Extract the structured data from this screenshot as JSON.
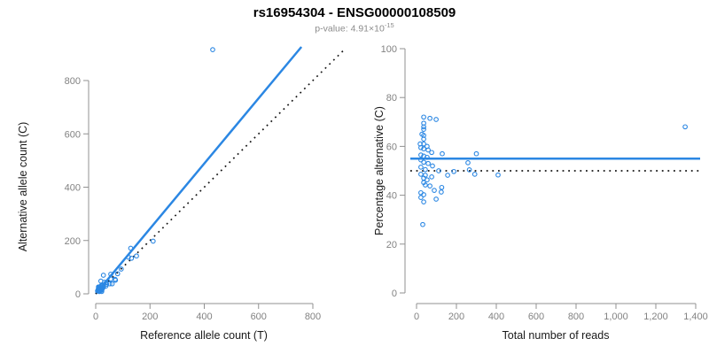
{
  "header": {
    "title": "rs16954304 - ENSG00000108509",
    "subtitle_label": "p-value: ",
    "p_value_mantissa": "4.91",
    "multiply_sign": "×",
    "p_value_base": "10",
    "p_value_exponent": "-15"
  },
  "colors": {
    "blue": "#2b87e3",
    "black": "#151515",
    "axis": "#919191",
    "tick_label": "#828282",
    "axis_title": "#1a1a1a",
    "title": "#000000",
    "subtitle": "#8c8c8c"
  },
  "chart_data": [
    {
      "type": "scatter",
      "name": "allele-counts-plot",
      "xlabel": "Reference allele count (T)",
      "ylabel": "Alternative allele count (C)",
      "xlim": [
        0,
        800
      ],
      "ylim": [
        0,
        800
      ],
      "xticks": [
        "0",
        "200",
        "400",
        "600",
        "800"
      ],
      "yticks": [
        "0",
        "200",
        "400",
        "600",
        "800"
      ],
      "grid": false,
      "lines": [
        {
          "name": "regression-line",
          "style": "solid",
          "color_key": "blue",
          "slope": 1.222,
          "intercept": 0
        },
        {
          "name": "identity-line",
          "style": "dotted",
          "color_key": "black",
          "slope": 1,
          "intercept": 0
        }
      ],
      "points_note": "points derived from reads plot: x = total*(100-pct)/100, y = total*pct/100"
    },
    {
      "type": "scatter",
      "name": "percentage-vs-reads-plot",
      "xlabel": "Total number of reads",
      "ylabel": "Percentage alternative (C)",
      "xlim": [
        0,
        1400
      ],
      "ylim": [
        0,
        100
      ],
      "xticks": [
        "0",
        "200",
        "400",
        "600",
        "800",
        "1,000",
        "1,200",
        "1,400"
      ],
      "yticks": [
        "0",
        "20",
        "40",
        "60",
        "80",
        "100"
      ],
      "grid": false,
      "hlines": [
        {
          "name": "mean-percentage-line",
          "style": "solid",
          "color_key": "blue",
          "y": 55
        },
        {
          "name": "fifty-percent-line",
          "style": "dotted",
          "color_key": "black",
          "y": 50
        }
      ],
      "points": [
        [
          36,
          72
        ],
        [
          67,
          71.5
        ],
        [
          98,
          71
        ],
        [
          36,
          69.5
        ],
        [
          36,
          68
        ],
        [
          36,
          67
        ],
        [
          27,
          65
        ],
        [
          36,
          64.5
        ],
        [
          36,
          63
        ],
        [
          18,
          61
        ],
        [
          36,
          61
        ],
        [
          53,
          60
        ],
        [
          22,
          59.5
        ],
        [
          36,
          59
        ],
        [
          58,
          58.5
        ],
        [
          76,
          57.5
        ],
        [
          129,
          57
        ],
        [
          300,
          57
        ],
        [
          22,
          56.5
        ],
        [
          36,
          56
        ],
        [
          53,
          55.5
        ],
        [
          22,
          54.5
        ],
        [
          36,
          53.5
        ],
        [
          258,
          53.3
        ],
        [
          58,
          53
        ],
        [
          80,
          52
        ],
        [
          22,
          51.5
        ],
        [
          44,
          50.5
        ],
        [
          111,
          50
        ],
        [
          187,
          49.7
        ],
        [
          265,
          50.4
        ],
        [
          22,
          48.6
        ],
        [
          44,
          48.2
        ],
        [
          156,
          48.2
        ],
        [
          76,
          47.5
        ],
        [
          292,
          48.6
        ],
        [
          409,
          48.3
        ],
        [
          36,
          47
        ],
        [
          53,
          46.3
        ],
        [
          36,
          45.2
        ],
        [
          44,
          44.2
        ],
        [
          67,
          43.8
        ],
        [
          126,
          43.2
        ],
        [
          89,
          42
        ],
        [
          124,
          41.3
        ],
        [
          22,
          41
        ],
        [
          36,
          40.2
        ],
        [
          22,
          39.1
        ],
        [
          98,
          38.4
        ],
        [
          36,
          37.3
        ],
        [
          31,
          28
        ],
        [
          1347,
          68
        ]
      ]
    }
  ]
}
